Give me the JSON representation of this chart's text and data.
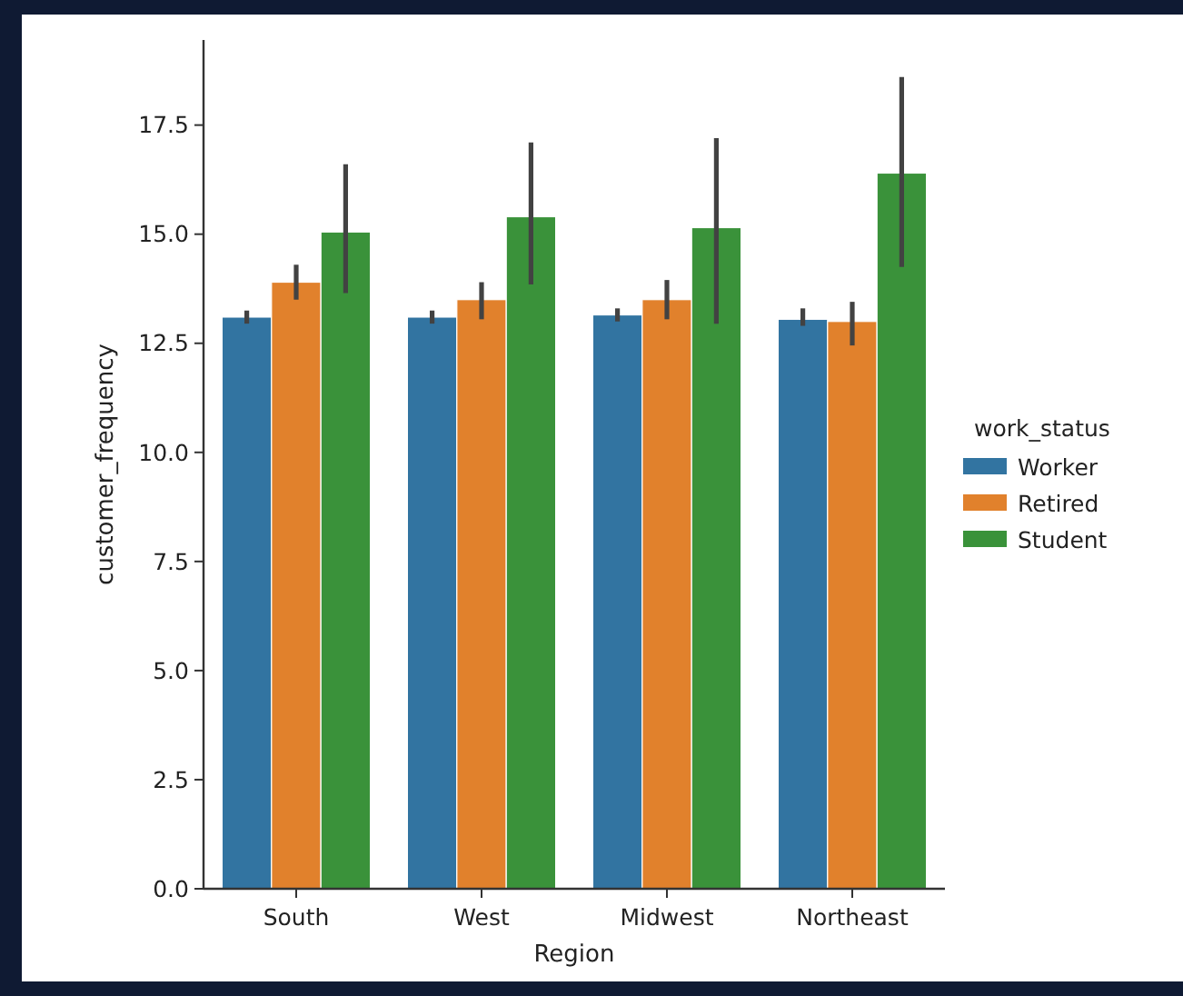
{
  "chart_data": {
    "type": "bar",
    "xlabel": "Region",
    "ylabel": "customer_frequency",
    "legend_title": "work_status",
    "legend": "right",
    "categories": [
      "South",
      "West",
      "Midwest",
      "Northeast"
    ],
    "series": [
      {
        "name": "Worker",
        "color": "#3274a1",
        "values": [
          13.1,
          13.1,
          13.15,
          13.05
        ],
        "errors": [
          [
            12.95,
            13.25
          ],
          [
            12.95,
            13.25
          ],
          [
            13.0,
            13.3
          ],
          [
            12.9,
            13.3
          ]
        ]
      },
      {
        "name": "Retired",
        "color": "#e1812c",
        "values": [
          13.9,
          13.5,
          13.5,
          13.0
        ],
        "errors": [
          [
            13.5,
            14.3
          ],
          [
            13.05,
            13.9
          ],
          [
            13.05,
            13.95
          ],
          [
            12.45,
            13.45
          ]
        ]
      },
      {
        "name": "Student",
        "color": "#3a923a",
        "values": [
          15.05,
          15.4,
          15.15,
          16.4
        ],
        "errors": [
          [
            13.65,
            16.6
          ],
          [
            13.85,
            17.1
          ],
          [
            12.95,
            17.2
          ],
          [
            14.25,
            18.6
          ]
        ]
      }
    ],
    "ylim": [
      0,
      19.45
    ],
    "yticks": [
      {
        "value": 0,
        "label": "0.0"
      },
      {
        "value": 2.5,
        "label": "2.5"
      },
      {
        "value": 5,
        "label": "5.0"
      },
      {
        "value": 7.5,
        "label": "7.5"
      },
      {
        "value": 10,
        "label": "10.0"
      },
      {
        "value": 12.5,
        "label": "12.5"
      },
      {
        "value": 15,
        "label": "15.0"
      },
      {
        "value": 17.5,
        "label": "17.5"
      }
    ]
  }
}
